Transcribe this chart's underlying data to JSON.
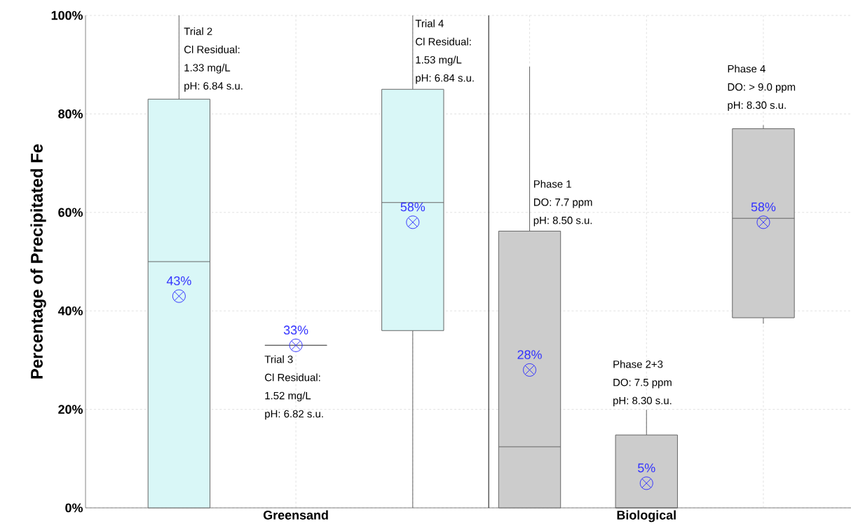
{
  "chart_data": {
    "type": "box",
    "ylabel": "Percentage of Precipitated Fe",
    "categories": [
      null,
      "Greensand",
      null,
      null,
      "Biological",
      null
    ],
    "boxes": [
      {
        "low": 0,
        "q1": 0,
        "median": 50,
        "q3": 83,
        "high": 100,
        "mean": 43
      },
      {
        "low": 33,
        "q1": 33,
        "median": 33,
        "q3": 33,
        "high": 33,
        "mean": 33
      },
      {
        "low": 0,
        "q1": 36,
        "median": 62,
        "q3": 85,
        "high": 100,
        "mean": 58
      },
      {
        "low": 0,
        "q1": 0,
        "median": 12.4,
        "q3": 56.2,
        "high": 89.6,
        "mean": 28
      },
      {
        "low": 0,
        "q1": 0,
        "median": 0,
        "q3": 14.8,
        "high": 19.9,
        "mean": 5
      },
      {
        "low": 37.4,
        "q1": 38.6,
        "median": 58.8,
        "q3": 77,
        "high": 77.7,
        "mean": 58
      }
    ],
    "colors": [
      "#d9f7f7",
      "#666666",
      "#d9f7f7",
      "#cccccc",
      "#cccccc",
      "#cccccc"
    ],
    "value_labels": [
      "43%",
      "33%",
      "58%",
      "28%",
      "5%",
      "58%"
    ],
    "ylim": [
      0,
      100
    ],
    "yticks": [
      {
        "value": 0,
        "label": "0%"
      },
      {
        "value": 20,
        "label": "20%"
      },
      {
        "value": 40,
        "label": "40%"
      },
      {
        "value": 60,
        "label": "60%"
      },
      {
        "value": 80,
        "label": "80%"
      },
      {
        "value": 100,
        "label": "100%"
      }
    ],
    "grid": true,
    "annotations": [
      "Trial 2",
      "Cl Residual:",
      "1.33 mg/L",
      "pH: 6.84 s.u.",
      "Trial 3",
      "Cl Residual:",
      "1.52 mg/L",
      "pH: 6.82 s.u.",
      "Trial 4",
      "Cl Residual:",
      "1.53 mg/L",
      "pH: 6.84 s.u.",
      "Phase 1",
      "DO: 7.7 ppm",
      "pH: 8.50 s.u.",
      "Phase 2+3",
      "DO: 7.5 ppm",
      "pH: 8.30 s.u.",
      "Phase 4",
      "DO: > 9.0 ppm",
      "pH: 8.30 s.u."
    ]
  }
}
